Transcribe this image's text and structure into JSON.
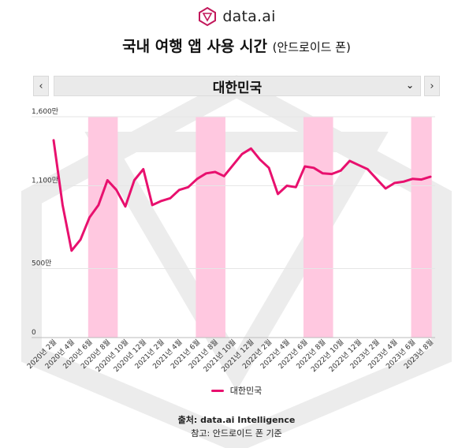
{
  "brand": {
    "name": "data.ai"
  },
  "title": {
    "main": "국내 여행 앱 사용 시간",
    "sub": "(안드로이드 폰)"
  },
  "nav": {
    "prev": "‹",
    "next": "›",
    "selected": "대한민국",
    "chevron": "⌄"
  },
  "colors": {
    "line": "#e8106e",
    "highlight": "#ffc8e0",
    "grid": "#e6e6e6",
    "axis": "#bbbbbb"
  },
  "chart_data": {
    "type": "line",
    "ylim": [
      0,
      1600
    ],
    "yticks": [
      {
        "value": 0,
        "label": "0"
      },
      {
        "value": 500,
        "label": "500만"
      },
      {
        "value": 1100,
        "label": "1,100만"
      },
      {
        "value": 1600,
        "label": "1,600만"
      }
    ],
    "x_labels": [
      "2020년 2월",
      "2020년 4월",
      "2020년 6월",
      "2020년 8월",
      "2020년 10월",
      "2020년 12월",
      "2021년 2월",
      "2021년 4월",
      "2021년 6월",
      "2021년 8월",
      "2021년 10월",
      "2021년 12월",
      "2022년 2월",
      "2022년 4월",
      "2022년 6월",
      "2022년 8월",
      "2022년 10월",
      "2022년 12월",
      "2023년 2월",
      "2023년 4월",
      "2023년 6월",
      "2023년 8월"
    ],
    "highlight_periods": [
      [
        "2020년 6월",
        "2020년 9월"
      ],
      [
        "2021년 6월",
        "2021년 9월"
      ],
      [
        "2022년 6월",
        "2022년 9월"
      ],
      [
        "2023년 6월",
        "2023년 8월"
      ]
    ],
    "series": [
      {
        "name": "대한민국",
        "x": [
          "2020-02",
          "2020-03",
          "2020-04",
          "2020-05",
          "2020-06",
          "2020-07",
          "2020-08",
          "2020-09",
          "2020-10",
          "2020-11",
          "2020-12",
          "2021-01",
          "2021-02",
          "2021-03",
          "2021-04",
          "2021-05",
          "2021-06",
          "2021-07",
          "2021-08",
          "2021-09",
          "2021-10",
          "2021-11",
          "2021-12",
          "2022-01",
          "2022-02",
          "2022-03",
          "2022-04",
          "2022-05",
          "2022-06",
          "2022-07",
          "2022-08",
          "2022-09",
          "2022-10",
          "2022-11",
          "2022-12",
          "2023-01",
          "2023-02",
          "2023-03",
          "2023-04",
          "2023-05",
          "2023-06",
          "2023-07",
          "2023-08"
        ],
        "values": [
          1430,
          960,
          630,
          710,
          870,
          960,
          1140,
          1070,
          950,
          1140,
          1220,
          960,
          990,
          1010,
          1070,
          1090,
          1150,
          1190,
          1200,
          1170,
          1250,
          1330,
          1370,
          1290,
          1230,
          1040,
          1100,
          1090,
          1240,
          1230,
          1190,
          1185,
          1210,
          1280,
          1250,
          1220,
          1150,
          1080,
          1120,
          1130,
          1150,
          1145,
          1165
        ]
      }
    ]
  },
  "legend": {
    "label": "대한민국"
  },
  "footer": {
    "source": "출처: data.ai Intelligence",
    "note": "참고: 안드로이드 폰 기준"
  }
}
